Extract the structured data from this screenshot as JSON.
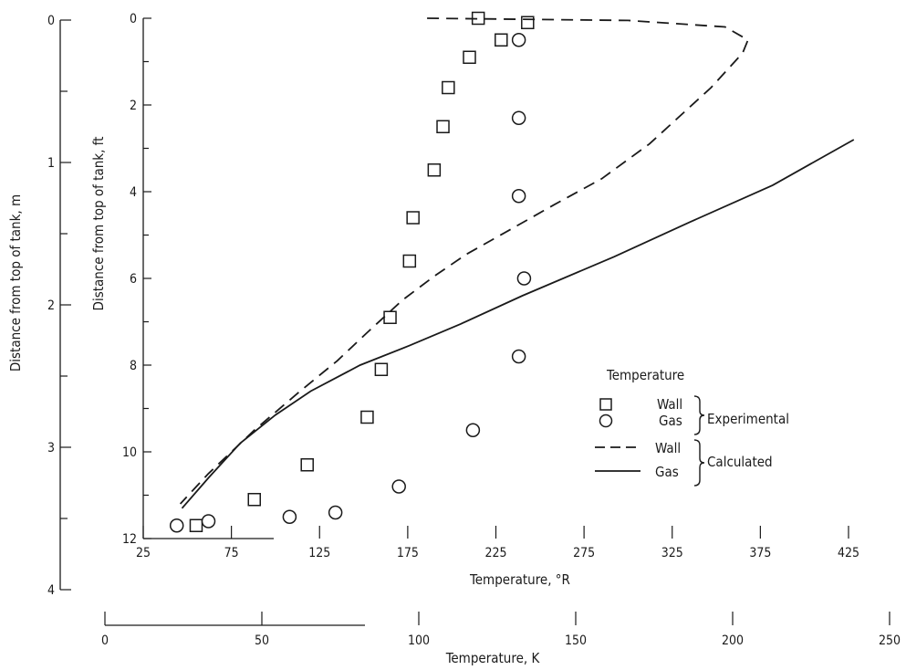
{
  "chart_data": {
    "type": "scatter",
    "title": "",
    "xlabel": "Temperature, °R",
    "ylabel": "Distance from top of tank, ft",
    "xlim": [
      25,
      425
    ],
    "ylim": [
      12,
      0
    ],
    "x_ticks": [
      "25",
      "75",
      "125",
      "175",
      "225",
      "275",
      "325",
      "375",
      "425"
    ],
    "y_ticks": [
      "0",
      "2",
      "4",
      "6",
      "8",
      "10",
      "12"
    ],
    "secondary_x_axis": {
      "label": "Temperature, K",
      "ticks": [
        "0",
        "50",
        "100",
        "150",
        "200",
        "250"
      ]
    },
    "secondary_y_axis": {
      "label": "Distance from top of tank, m",
      "ticks": [
        "0",
        "1",
        "2",
        "3",
        "4"
      ]
    },
    "legend": {
      "title": "Temperature",
      "position": "right",
      "entries": [
        {
          "label": "Wall",
          "marker": "square"
        },
        {
          "label": "Gas",
          "marker": "circle"
        },
        {
          "label": "Wall",
          "line": "dashed"
        },
        {
          "label": "Gas",
          "line": "solid"
        }
      ],
      "groups": [
        "Experimental",
        "Calculated"
      ]
    },
    "series": [
      {
        "name": "Wall",
        "group": "Experimental",
        "kind": "scatter",
        "marker": "square",
        "points": [
          [
            215,
            0
          ],
          [
            243,
            0.1
          ],
          [
            228,
            0.5
          ],
          [
            210,
            0.9
          ],
          [
            198,
            1.6
          ],
          [
            195,
            2.5
          ],
          [
            190,
            3.5
          ],
          [
            178,
            4.6
          ],
          [
            176,
            5.6
          ],
          [
            165,
            6.9
          ],
          [
            160,
            8.1
          ],
          [
            152,
            9.2
          ],
          [
            118,
            10.3
          ],
          [
            88,
            11.1
          ],
          [
            55,
            11.7
          ]
        ]
      },
      {
        "name": "Gas",
        "group": "Experimental",
        "kind": "scatter",
        "marker": "circle",
        "points": [
          [
            238,
            0.5
          ],
          [
            238,
            2.3
          ],
          [
            238,
            4.1
          ],
          [
            241,
            6.0
          ],
          [
            238,
            7.8
          ],
          [
            212,
            9.5
          ],
          [
            170,
            10.8
          ],
          [
            134,
            11.4
          ],
          [
            108,
            11.5
          ],
          [
            62,
            11.6
          ],
          [
            44,
            11.7
          ]
        ]
      },
      {
        "name": "Wall",
        "group": "Calculated",
        "kind": "line",
        "style": "dashed",
        "points": [
          [
            186,
            0
          ],
          [
            300,
            0.05
          ],
          [
            355,
            0.2
          ],
          [
            368,
            0.5
          ],
          [
            365,
            0.8
          ],
          [
            347,
            1.6
          ],
          [
            312,
            2.9
          ],
          [
            285,
            3.7
          ],
          [
            258,
            4.3
          ],
          [
            232,
            4.9
          ],
          [
            208,
            5.45
          ],
          [
            190,
            5.95
          ],
          [
            172,
            6.5
          ],
          [
            152,
            7.25
          ],
          [
            135,
            7.9
          ],
          [
            114,
            8.6
          ],
          [
            88,
            9.5
          ],
          [
            62,
            10.5
          ],
          [
            46,
            11.2
          ]
        ]
      },
      {
        "name": "Gas",
        "group": "Calculated",
        "kind": "line",
        "style": "solid",
        "points": [
          [
            47,
            11.3
          ],
          [
            62,
            10.6
          ],
          [
            80,
            9.8
          ],
          [
            100,
            9.15
          ],
          [
            120,
            8.6
          ],
          [
            148,
            8.0
          ],
          [
            176,
            7.55
          ],
          [
            205,
            7.05
          ],
          [
            240,
            6.4
          ],
          [
            292,
            5.5
          ],
          [
            335,
            4.7
          ],
          [
            382,
            3.85
          ],
          [
            428,
            2.8
          ]
        ]
      }
    ]
  }
}
